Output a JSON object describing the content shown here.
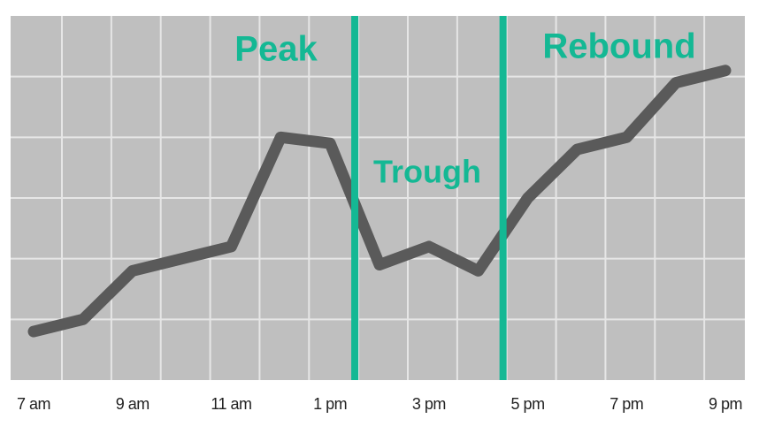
{
  "chart_data": {
    "type": "line",
    "categories": [
      "7 am",
      null,
      "9 am",
      null,
      "11 am",
      null,
      "1 pm",
      null,
      "3 pm",
      null,
      "5 pm",
      null,
      "7 pm",
      null,
      "9 pm"
    ],
    "series": [
      {
        "color": "#5a5a5a",
        "values": [
          0.8,
          1.0,
          1.8,
          2.0,
          2.2,
          4.0,
          3.9,
          1.9,
          2.2,
          1.8,
          3.0,
          3.8,
          4.0,
          4.9,
          5.1
        ]
      }
    ],
    "ylim": [
      0,
      6
    ],
    "ygrid": [
      1,
      2,
      3,
      4,
      5
    ],
    "grid": true,
    "dividers": [
      6.5,
      9.5
    ],
    "divider_color": "#14b894",
    "annotations": [
      "Peak",
      "Trough",
      "Rebound"
    ]
  }
}
